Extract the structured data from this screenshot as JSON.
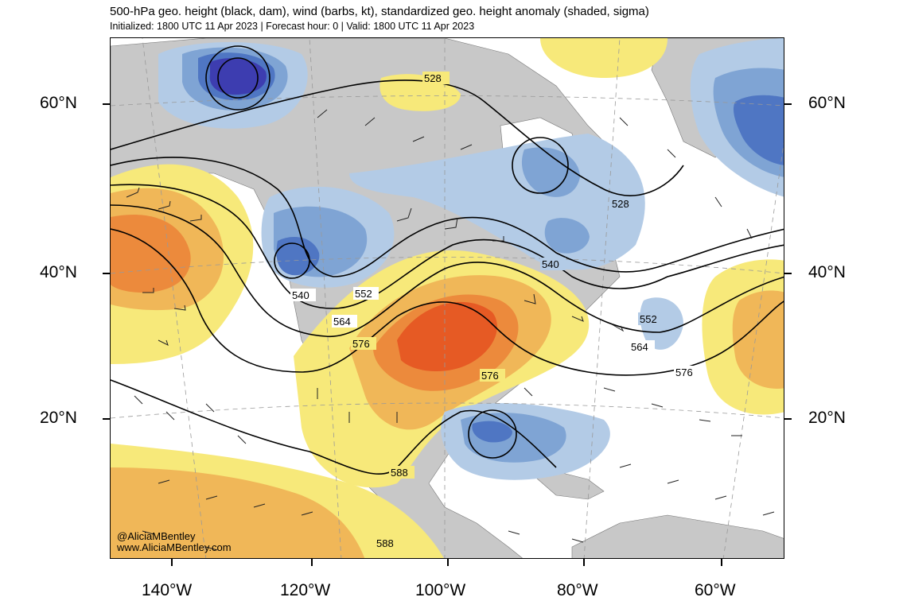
{
  "header": {
    "title": "500-hPa geo. height (black, dam), wind (barbs, kt), standardized geo. height anomaly (shaded, sigma)",
    "subtitle": "Initialized: 1800 UTC 11 Apr 2023 | Forecast hour: 0 | Valid: 1800 UTC 11 Apr 2023"
  },
  "latitude_labels": [
    "60°N",
    "40°N",
    "20°N"
  ],
  "longitude_labels": [
    "140°W",
    "120°W",
    "100°W",
    "80°W",
    "60°W"
  ],
  "contour_labels": [
    "528",
    "528",
    "540",
    "540",
    "552",
    "552",
    "564",
    "564",
    "576",
    "576",
    "576",
    "588",
    "588"
  ],
  "credit": {
    "handle": "@AliciaMBentley",
    "website": "www.AliciaMBentley.com"
  },
  "colors": {
    "land": "#c8c8c8",
    "positive_weak": "#f7e97a",
    "positive_moderate": "#f0b758",
    "positive_strong": "#ec8a3c",
    "positive_extreme": "#e65a24",
    "negative_weak": "#b3cbe6",
    "negative_moderate": "#7fa4d4",
    "negative_strong": "#4f76c3",
    "negative_extreme": "#3d3db0"
  }
}
